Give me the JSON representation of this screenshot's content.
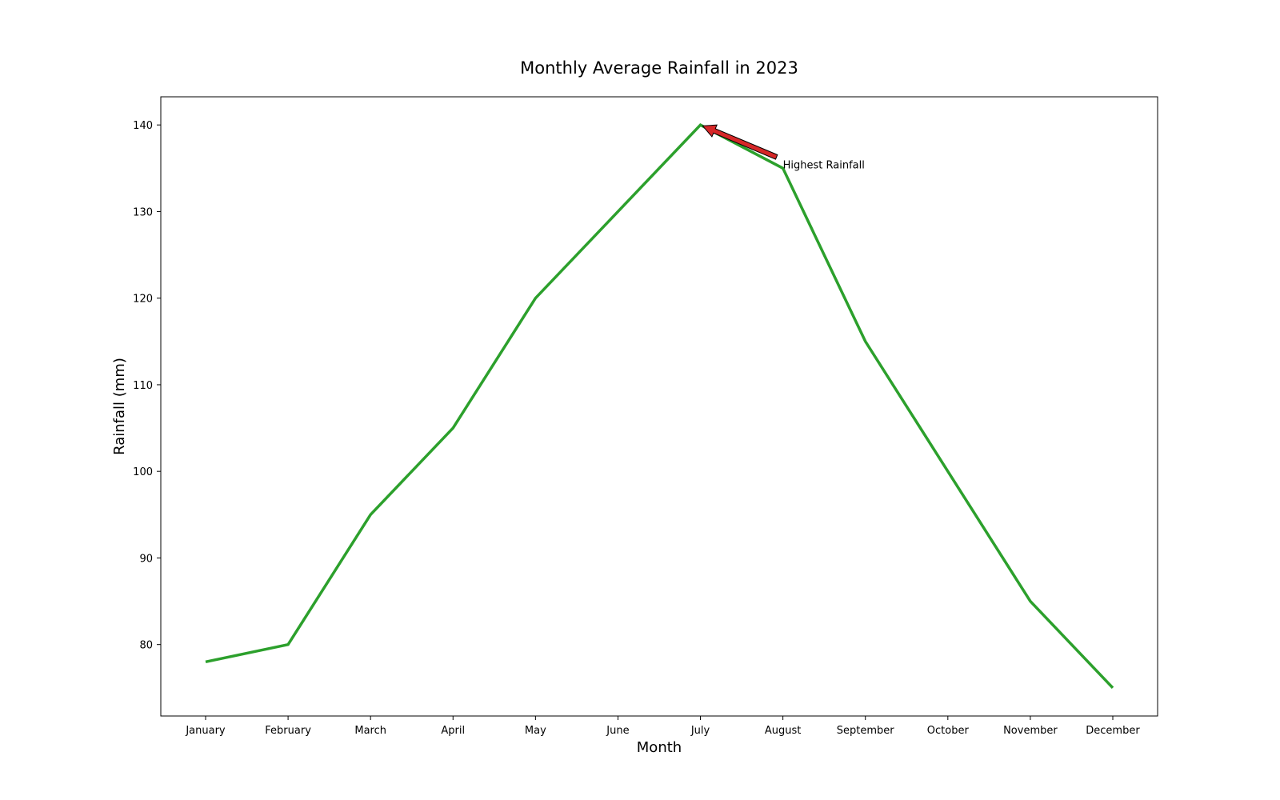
{
  "chart_data": {
    "type": "line",
    "title": "Monthly Average Rainfall in 2023",
    "xlabel": "Month",
    "ylabel": "Rainfall (mm)",
    "categories": [
      "January",
      "February",
      "March",
      "April",
      "May",
      "June",
      "July",
      "August",
      "September",
      "October",
      "November",
      "December"
    ],
    "series": [
      {
        "values": [
          78,
          80,
          95,
          105,
          120,
          130,
          140,
          135,
          115,
          100,
          85,
          75
        ],
        "color": "#2ca02c"
      }
    ],
    "ylim": [
      71.75,
      143.25
    ],
    "yticks": [
      80,
      90,
      100,
      110,
      120,
      130,
      140
    ],
    "grid": false,
    "legend": "none",
    "annotation": {
      "text": "Highest Rainfall",
      "point": {
        "x": "July",
        "y": 140
      },
      "text_anchor": {
        "x": "August",
        "y": 135
      },
      "arrow_color": "#d62728"
    }
  }
}
